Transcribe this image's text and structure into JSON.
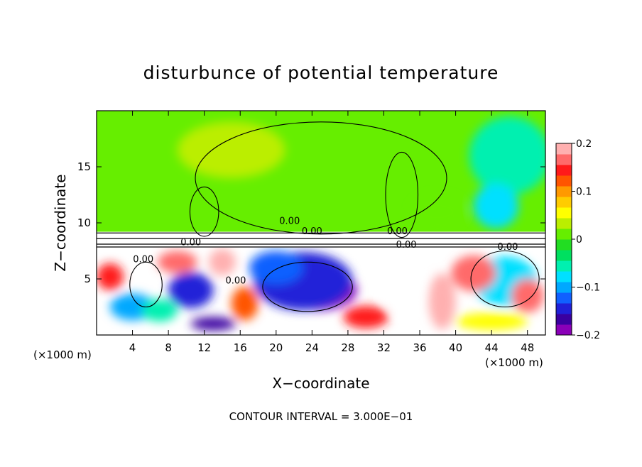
{
  "chart_data": {
    "type": "heatmap",
    "title": "disturbunce of potential temperature",
    "xlabel": "X−coordinate",
    "ylabel": "Z−coordinate",
    "x_unit_left": "(×1000 m)",
    "x_unit_right": "(×1000 m)",
    "xlim": [
      0,
      50
    ],
    "ylim": [
      0,
      20
    ],
    "x_ticks": [
      4,
      8,
      12,
      16,
      20,
      24,
      28,
      32,
      36,
      40,
      44,
      48
    ],
    "x_tick_labels": [
      "4",
      "8",
      "12",
      "16",
      "20",
      "24",
      "28",
      "32",
      "36",
      "40",
      "44",
      "48"
    ],
    "y_ticks": [
      5,
      10,
      15
    ],
    "y_tick_labels": [
      "5",
      "10",
      "15"
    ],
    "footnote": "CONTOUR INTERVAL = 3.000E−01",
    "colorbar": {
      "range": [
        -0.2,
        0.2
      ],
      "ticks": [
        0.2,
        0.1,
        0,
        -0.1,
        -0.2
      ],
      "tick_labels": [
        "0.2",
        "0.1",
        "0",
        "−0.1",
        "−0.2"
      ],
      "colors": [
        "#8a00b8",
        "#3a00a0",
        "#2020d8",
        "#1060ff",
        "#00a8ff",
        "#00e0ff",
        "#00f0b0",
        "#00e060",
        "#22dd22",
        "#66ee00",
        "#bbee00",
        "#ffff00",
        "#ffcc00",
        "#ff9900",
        "#ff5500",
        "#ff1a1a",
        "#ff6a6a",
        "#ffb0b0"
      ]
    },
    "contour_labels": [
      "0.00",
      "0.00",
      "0.00",
      "0.00",
      "0.00",
      "0.00",
      "0.00",
      "0.00"
    ],
    "regions": [
      {
        "x0": 0,
        "x1": 50,
        "z0": 9.2,
        "z1": 20,
        "value": 0.01
      },
      {
        "x0": 0,
        "x1": 50,
        "z0": 0,
        "z1": 7.8,
        "value": 0.0
      }
    ],
    "anomalies": [
      {
        "x": 24.5,
        "z": 4.0,
        "rx": 4.5,
        "rz": 1.8,
        "value": -0.19
      },
      {
        "x": 23.0,
        "z": 4.8,
        "rx": 5.5,
        "rz": 2.6,
        "value": -0.15
      },
      {
        "x": 20.0,
        "z": 6.0,
        "rx": 3.0,
        "rz": 1.5,
        "value": -0.12
      },
      {
        "x": 45.5,
        "z": 4.8,
        "rx": 3.6,
        "rz": 2.2,
        "value": -0.08
      },
      {
        "x": 4.0,
        "z": 2.5,
        "rx": 2.5,
        "rz": 1.2,
        "value": -0.09
      },
      {
        "x": 10.5,
        "z": 4.0,
        "rx": 2.5,
        "rz": 1.6,
        "value": -0.14
      },
      {
        "x": 14.0,
        "z": 6.5,
        "rx": 1.5,
        "rz": 1.2,
        "value": 0.18
      },
      {
        "x": 9.0,
        "z": 6.5,
        "rx": 2.2,
        "rz": 1.0,
        "value": 0.17
      },
      {
        "x": 1.5,
        "z": 5.2,
        "rx": 1.5,
        "rz": 1.2,
        "value": 0.15
      },
      {
        "x": 42.0,
        "z": 5.5,
        "rx": 2.5,
        "rz": 1.6,
        "value": 0.16
      },
      {
        "x": 48.0,
        "z": 3.5,
        "rx": 1.8,
        "rz": 1.5,
        "value": 0.17
      },
      {
        "x": 16.5,
        "z": 2.8,
        "rx": 1.5,
        "rz": 1.5,
        "value": 0.12
      },
      {
        "x": 30.0,
        "z": 1.6,
        "rx": 2.5,
        "rz": 1.0,
        "value": 0.15
      },
      {
        "x": 34.0,
        "z": 4.0,
        "rx": 2.0,
        "rz": 2.0,
        "value": 0.0
      },
      {
        "x": 7.0,
        "z": 2.2,
        "rx": 2.0,
        "rz": 1.0,
        "value": -0.05
      },
      {
        "x": 38.5,
        "z": 3.0,
        "rx": 1.5,
        "rz": 2.5,
        "value": 0.2
      },
      {
        "x": 44.0,
        "z": 1.2,
        "rx": 4.0,
        "rz": 0.8,
        "value": 0.06
      },
      {
        "x": 13.0,
        "z": 1.0,
        "rx": 2.5,
        "rz": 0.6,
        "value": -0.16
      },
      {
        "x": 46.0,
        "z": 16.0,
        "rx": 4.5,
        "rz": 3.5,
        "value": -0.05
      },
      {
        "x": 44.5,
        "z": 11.5,
        "rx": 2.5,
        "rz": 2.0,
        "value": -0.07
      },
      {
        "x": 15.0,
        "z": 16.5,
        "rx": 6.0,
        "rz": 2.5,
        "value": 0.025
      },
      {
        "x": 38.0,
        "z": 11.0,
        "rx": 3.0,
        "rz": 1.5,
        "value": 0.02
      }
    ]
  }
}
